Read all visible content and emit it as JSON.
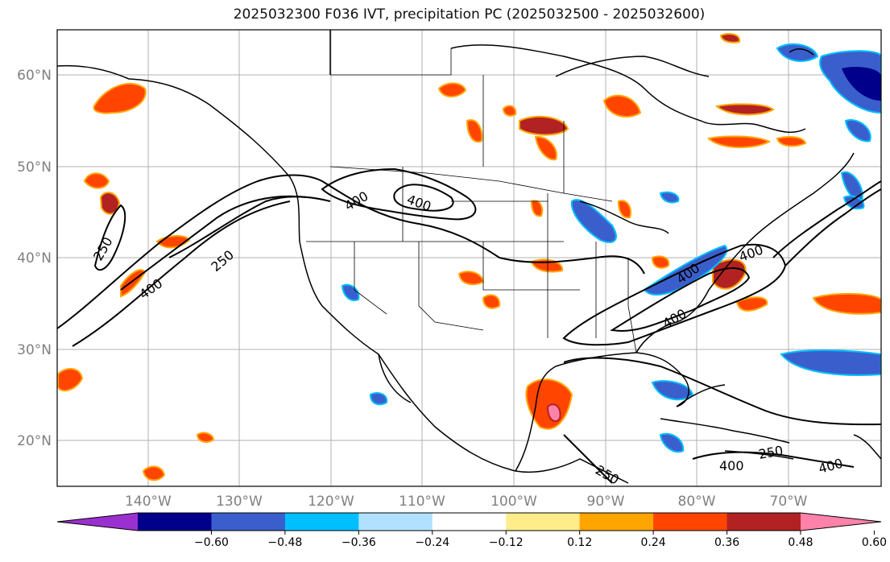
{
  "title": "2025032300 F036 IVT, precipitation PC (2025032500 - 2025032600)",
  "map": {
    "lat_labels": [
      "60°N",
      "50°N",
      "40°N",
      "30°N",
      "20°N"
    ],
    "lon_labels": [
      "140°W",
      "130°W",
      "120°W",
      "110°W",
      "100°W",
      "90°W",
      "80°W",
      "70°W"
    ],
    "contour_labels": [
      "250",
      "250",
      "400",
      "400",
      "400",
      "400",
      "400",
      "400",
      "400",
      "400",
      "250",
      "250"
    ],
    "colors": {
      "land_lines": "#000000",
      "grid": "#b0b0b0",
      "contour": "#000000"
    }
  },
  "colorbar": {
    "tick_labels": [
      "−0.60",
      "−0.48",
      "−0.36",
      "−0.24",
      "−0.12",
      "0.12",
      "0.24",
      "0.36",
      "0.48",
      "0.60"
    ],
    "colors": [
      "#9b30d0",
      "#00008b",
      "#3a5fcd",
      "#00bfff",
      "#b0e2ff",
      "#ffffff",
      "#ffec8b",
      "#ffa500",
      "#ff4500",
      "#b22222",
      "#ff82ab"
    ]
  }
}
